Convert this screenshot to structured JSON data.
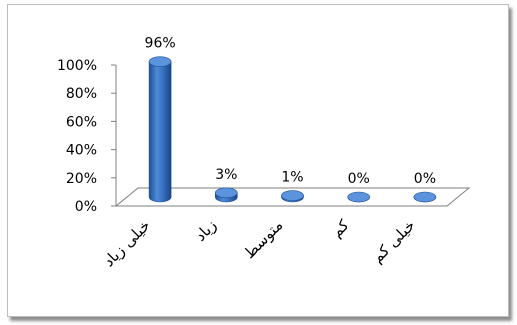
{
  "chart_data": {
    "type": "bar",
    "categories": [
      "خیلی زیاد",
      "زیاد",
      "متوسط",
      "کم",
      "خیلی کم"
    ],
    "values": [
      96,
      3,
      1,
      0,
      0
    ],
    "data_labels": [
      "96%",
      "3%",
      "1%",
      "0%",
      "0%"
    ],
    "y_ticks": [
      "0%",
      "20%",
      "40%",
      "60%",
      "80%",
      "100%"
    ],
    "ylim": [
      0,
      100
    ],
    "grid": false,
    "legend": "none",
    "bar_color": "#3a74c4",
    "bar_top_color": "#5b93dc",
    "bar_dark_color": "#1f4f96"
  }
}
